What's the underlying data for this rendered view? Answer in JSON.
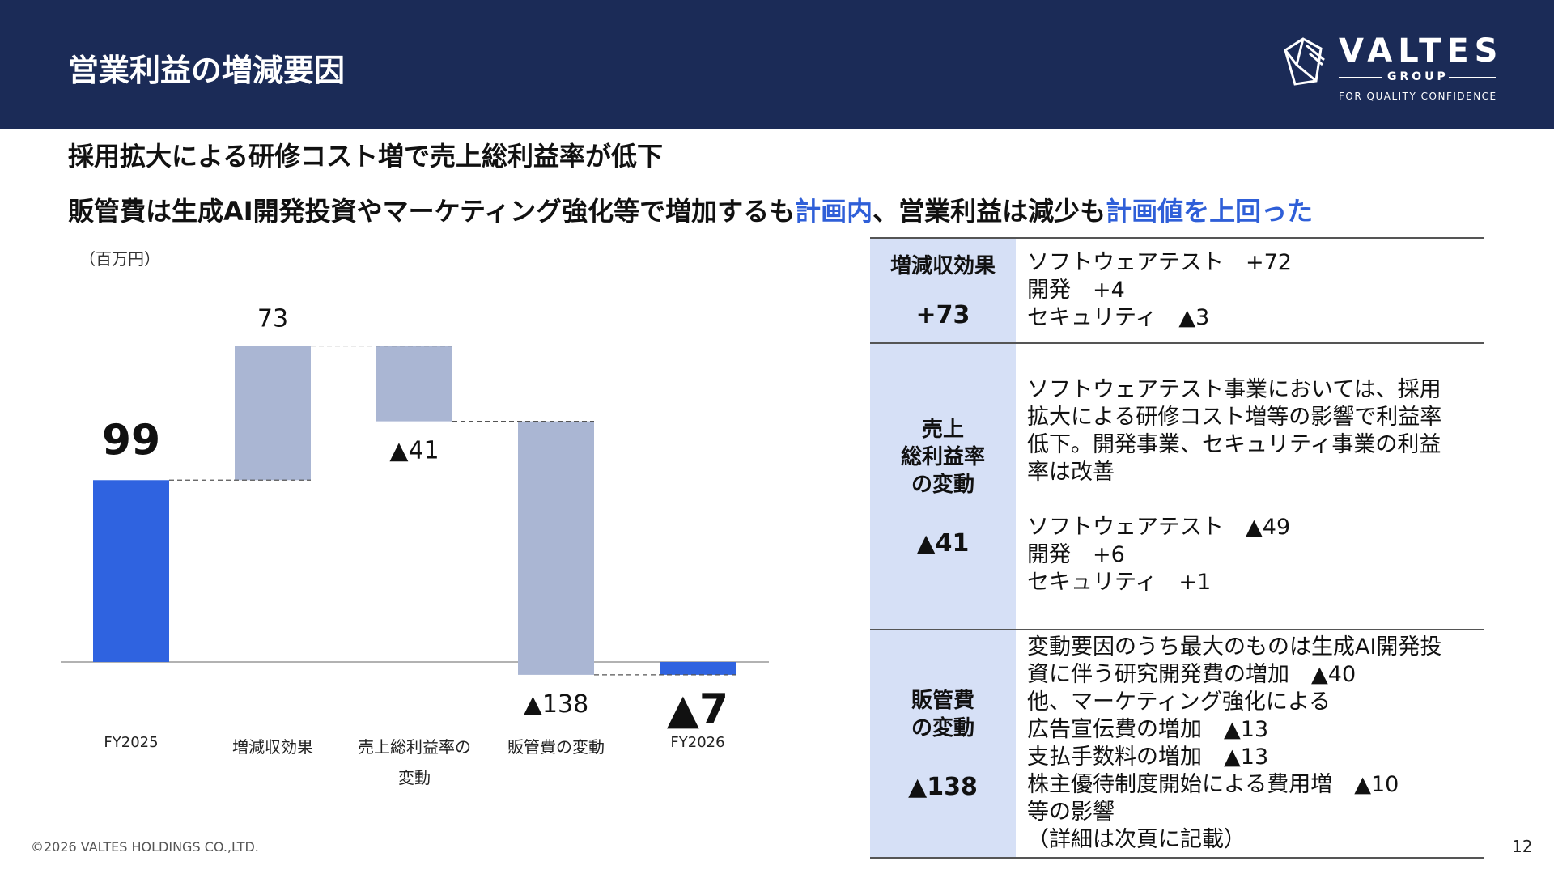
{
  "header": {
    "title": "営業利益の増減要因",
    "logo": {
      "word": "VALTES",
      "group": "GROUP",
      "tagline": "FOR QUALITY CONFIDENCE"
    }
  },
  "headline": {
    "line1": "採用拡大による研修コスト増で売上総利益率が低下",
    "line2_a": "販管費は生成AI開発投資やマーケティング強化等で増加するも",
    "line2_b": "計画内",
    "line2_c": "、営業利益は減少も",
    "line2_d": "計画値を上回った"
  },
  "unit_label": "（百万円）",
  "chart_data": {
    "type": "waterfall",
    "colors": {
      "total": "#2f63e0",
      "change": "#aab6d3",
      "connector": "#555555",
      "baseline": "#999999"
    },
    "steps": [
      {
        "category": "FY2025",
        "value": 99,
        "kind": "total",
        "label": "99"
      },
      {
        "category": "増減収効果",
        "value": 73,
        "kind": "change",
        "label": "73"
      },
      {
        "category": "売上総利益率の変動",
        "category_lines": [
          "売上総利益率の",
          "変動"
        ],
        "value": -41,
        "kind": "change",
        "label": "▲41"
      },
      {
        "category": "販管費の変動",
        "value": -138,
        "kind": "change",
        "label": "▲138"
      },
      {
        "category": "FY2026",
        "value": -7,
        "kind": "total",
        "label": "▲7"
      }
    ]
  },
  "panel": {
    "rows": [
      {
        "label": "増減収効果",
        "value": "+73",
        "lines": [
          "ソフトウェアテスト　+72",
          "開発　+4",
          "セキュリティ　▲3"
        ]
      },
      {
        "label": "売上\n総利益率\nの変動",
        "value": "▲41",
        "lines": [
          "ソフトウェアテスト事業においては、採用",
          "拡大による研修コスト増等の影響で利益率",
          "低下。開発事業、セキュリティ事業の利益",
          "率は改善",
          "",
          "ソフトウェアテスト　▲49",
          "開発　+6",
          "セキュリティ　+1"
        ]
      },
      {
        "label": "販管費\nの変動",
        "value": "▲138",
        "lines": [
          "変動要因のうち最大のものは生成AI開発投",
          "資に伴う研究開発費の増加　▲40",
          "他、マーケティング強化による",
          "広告宣伝費の増加　▲13",
          "支払手数料の増加　▲13",
          "株主優待制度開始による費用増　▲10",
          "等の影響",
          "（詳細は次頁に記載）"
        ]
      }
    ]
  },
  "footer": {
    "copyright": "©2026 VALTES HOLDINGS CO.,LTD.",
    "page": "12"
  }
}
